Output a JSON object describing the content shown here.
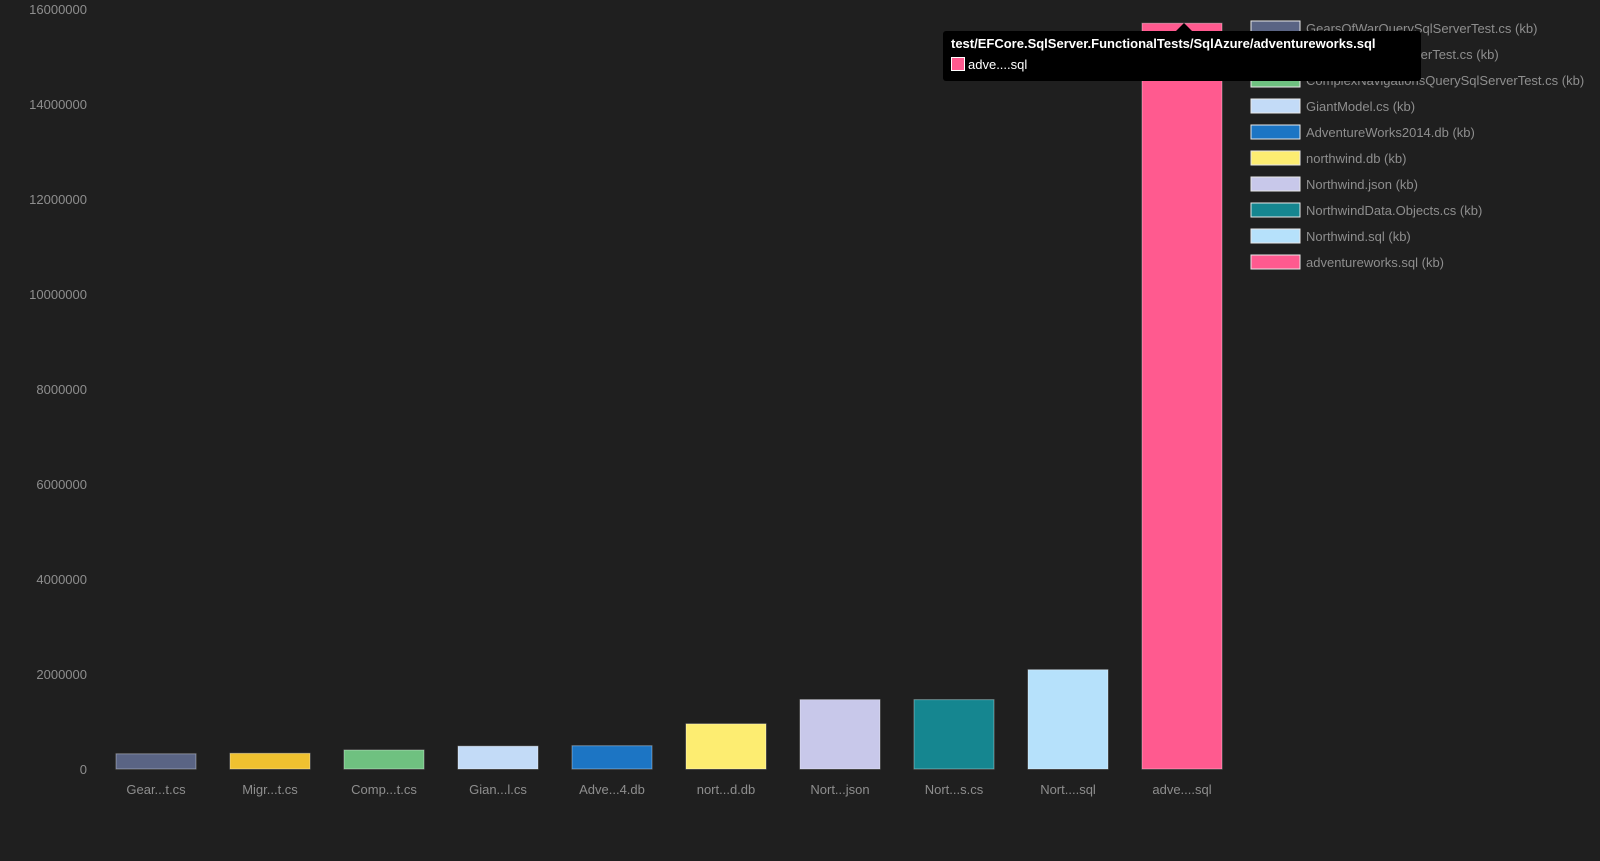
{
  "colors": {
    "background": "#1f1f1f",
    "text": "#8e8e8e",
    "tooltip_bg": "#000000",
    "tooltip_text": "#ffffff"
  },
  "chart_data": {
    "type": "bar",
    "grid": false,
    "legend_position": "top-right",
    "ylim": [
      0,
      16000000
    ],
    "yticks": [
      0,
      2000000,
      4000000,
      6000000,
      8000000,
      10000000,
      12000000,
      14000000,
      16000000
    ],
    "categories": [
      "Gear...t.cs",
      "Migr...t.cs",
      "Comp...t.cs",
      "Gian...l.cs",
      "Adve...4.db",
      "nort...d.db",
      "Nort...json",
      "Nort...s.cs",
      "Nort....sql",
      "adve....sql"
    ],
    "values": [
      320000,
      330000,
      400000,
      480000,
      490000,
      950000,
      1460000,
      1460000,
      2090000,
      15700000
    ],
    "colors": [
      "#5a6484",
      "#efc130",
      "#6fc180",
      "#c3dbf7",
      "#1c75c4",
      "#fded71",
      "#c8c8ea",
      "#158690",
      "#b6e1fb",
      "#ff5a8f"
    ],
    "legend": [
      "GearsOfWarQuerySqlServerTest.cs (kb)",
      "MigrationsModelDifferTest.cs (kb)",
      "ComplexNavigationsQuerySqlServerTest.cs (kb)",
      "GiantModel.cs (kb)",
      "AdventureWorks2014.db (kb)",
      "northwind.db (kb)",
      "Northwind.json (kb)",
      "NorthwindData.Objects.cs (kb)",
      "Northwind.sql (kb)",
      "adventureworks.sql (kb)"
    ]
  },
  "tooltip": {
    "title": "test/EFCore.SqlServer.FunctionalTests/SqlAzure/adventureworks.sql",
    "item_label": "adve....sql",
    "item_color": "#ff5a8f"
  }
}
